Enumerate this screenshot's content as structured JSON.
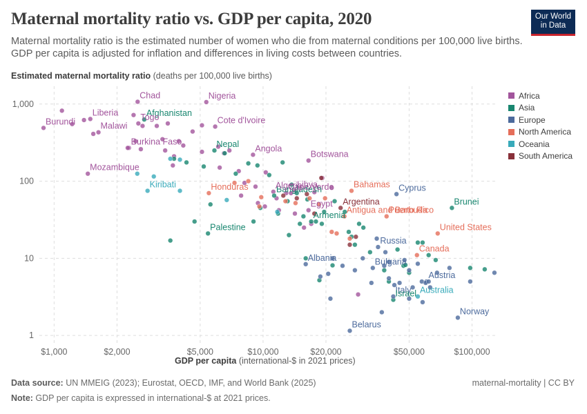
{
  "header": {
    "title": "Maternal mortality ratio vs. GDP per capita, 2020",
    "subtitle": "Maternal mortality ratio is the estimated number of women who die from maternal conditions per 100,000 live births. GDP per capita is adjusted for inflation and differences in living costs between countries.",
    "logo_line1": "Our World",
    "logo_line2": "in Data"
  },
  "axes": {
    "y_label_bold": "Estimated maternal mortality ratio",
    "y_label_rest": " (deaths per 100,000 live births)",
    "x_label_bold": "GDP per capita",
    "x_label_rest": " (international-$ in 2021 prices)"
  },
  "footer": {
    "source_label": "Data source:",
    "source_text": " UN MMEIG (2023); Eurostat, OECD, IMF, and World Bank (2025)",
    "note_label": "Note:",
    "note_text": " GDP per capita is expressed in international-$ at 2021 prices.",
    "credit": "maternal-mortality | CC BY"
  },
  "chart_data": {
    "type": "scatter",
    "x_scale": "log",
    "y_scale": "log",
    "xlim": [
      850,
      130000
    ],
    "ylim": [
      0.8,
      1700
    ],
    "x_ticks": [
      {
        "value": 1000,
        "label": "$1,000"
      },
      {
        "value": 2000,
        "label": "$2,000"
      },
      {
        "value": 5000,
        "label": "$5,000"
      },
      {
        "value": 10000,
        "label": "$10,000"
      },
      {
        "value": 20000,
        "label": "$20,000"
      },
      {
        "value": 50000,
        "label": "$50,000"
      },
      {
        "value": 100000,
        "label": "$100,000"
      }
    ],
    "y_ticks": [
      {
        "value": 1,
        "label": "1"
      },
      {
        "value": 10,
        "label": "10"
      },
      {
        "value": 100,
        "label": "100"
      },
      {
        "value": 1000,
        "label": "1,000"
      }
    ],
    "grid": true,
    "legend_position": "right",
    "series": [
      {
        "name": "Africa",
        "color": "#a2559c",
        "points": [
          [
            1090,
            820
          ],
          [
            2510,
            1070
          ],
          [
            5350,
            1060
          ],
          [
            1490,
            640
          ],
          [
            890,
            490
          ],
          [
            1630,
            430
          ],
          [
            2530,
            560
          ],
          [
            5900,
            510
          ],
          [
            3300,
            350
          ],
          [
            2280,
            270
          ],
          [
            8950,
            220
          ],
          [
            16500,
            185
          ],
          [
            1450,
            125
          ],
          [
            7650,
            135
          ],
          [
            14200,
            75
          ],
          [
            11200,
            73
          ],
          [
            12900,
            70
          ],
          [
            16500,
            42
          ],
          [
            17000,
            28
          ],
          [
            1220,
            550
          ],
          [
            1390,
            620
          ],
          [
            1540,
            410
          ],
          [
            2250,
            270
          ],
          [
            2400,
            720
          ],
          [
            2650,
            520
          ],
          [
            3100,
            520
          ],
          [
            3500,
            560
          ],
          [
            3950,
            330
          ],
          [
            4600,
            440
          ],
          [
            5100,
            530
          ],
          [
            6100,
            280
          ],
          [
            6500,
            230
          ],
          [
            3400,
            250
          ],
          [
            2600,
            260
          ],
          [
            6900,
            250
          ],
          [
            5100,
            240
          ],
          [
            6200,
            150
          ],
          [
            8150,
            95
          ],
          [
            9200,
            85
          ],
          [
            10300,
            130
          ],
          [
            11600,
            60
          ],
          [
            13600,
            70
          ],
          [
            17600,
            72
          ],
          [
            19200,
            110
          ],
          [
            21300,
            82
          ],
          [
            7850,
            65
          ],
          [
            9450,
            52
          ],
          [
            10200,
            47
          ],
          [
            11900,
            42
          ],
          [
            14200,
            38
          ],
          [
            15700,
            25
          ],
          [
            28500,
            3.4
          ],
          [
            2450,
            330
          ],
          [
            3750,
            210
          ],
          [
            3700,
            160
          ],
          [
            4150,
            290
          ]
        ]
      },
      {
        "name": "Asia",
        "color": "#18866f",
        "points": [
          [
            2700,
            630
          ],
          [
            5850,
            250
          ],
          [
            80100,
            45
          ],
          [
            17000,
            30
          ],
          [
            5450,
            21
          ],
          [
            11300,
            65
          ],
          [
            3750,
            195
          ],
          [
            4300,
            175
          ],
          [
            5200,
            155
          ],
          [
            6550,
            230
          ],
          [
            7400,
            125
          ],
          [
            8500,
            170
          ],
          [
            9400,
            160
          ],
          [
            10700,
            120
          ],
          [
            12400,
            175
          ],
          [
            13700,
            90
          ],
          [
            13100,
            55
          ],
          [
            14500,
            70
          ],
          [
            15600,
            35
          ],
          [
            16300,
            58
          ],
          [
            17900,
            30
          ],
          [
            19100,
            28
          ],
          [
            19600,
            40
          ],
          [
            22000,
            55
          ],
          [
            24600,
            40
          ],
          [
            25700,
            22
          ],
          [
            26500,
            19
          ],
          [
            27500,
            15
          ],
          [
            28800,
            28
          ],
          [
            30200,
            25
          ],
          [
            32500,
            12
          ],
          [
            38000,
            7
          ],
          [
            44000,
            13
          ],
          [
            47000,
            8
          ],
          [
            50000,
            6.5
          ],
          [
            55000,
            16
          ],
          [
            58000,
            16
          ],
          [
            62000,
            11
          ],
          [
            67000,
            9.5
          ],
          [
            98000,
            7.5
          ],
          [
            115000,
            7.2
          ],
          [
            40000,
            5
          ],
          [
            42000,
            2.9
          ],
          [
            48000,
            8.2
          ],
          [
            3600,
            17
          ],
          [
            4700,
            30
          ],
          [
            5600,
            50
          ],
          [
            9000,
            30
          ],
          [
            9700,
            45
          ],
          [
            11800,
            38
          ],
          [
            13300,
            20
          ],
          [
            15000,
            28
          ],
          [
            16000,
            10
          ],
          [
            18600,
            5.2
          ],
          [
            21500,
            8.1
          ]
        ]
      },
      {
        "name": "Europe",
        "color": "#4c6a9c",
        "points": [
          [
            43500,
            68
          ],
          [
            35500,
            14
          ],
          [
            16000,
            8.4
          ],
          [
            33500,
            7.5
          ],
          [
            60500,
            5
          ],
          [
            85500,
            1.7
          ],
          [
            26000,
            1.15
          ],
          [
            42000,
            3.2
          ],
          [
            35000,
            18
          ],
          [
            38000,
            8
          ],
          [
            40000,
            5.5
          ],
          [
            42500,
            4.5
          ],
          [
            45000,
            4.8
          ],
          [
            47500,
            9.5
          ],
          [
            50000,
            7
          ],
          [
            52000,
            4.2
          ],
          [
            55000,
            8.5
          ],
          [
            57500,
            5
          ],
          [
            60000,
            4.8
          ],
          [
            63000,
            4.2
          ],
          [
            68000,
            6.5
          ],
          [
            78000,
            7.5
          ],
          [
            98000,
            5
          ],
          [
            128000,
            6.5
          ],
          [
            21000,
            3
          ],
          [
            18800,
            5.8
          ],
          [
            20500,
            6.3
          ],
          [
            21500,
            10
          ],
          [
            24000,
            8
          ],
          [
            27500,
            7
          ],
          [
            30000,
            10
          ],
          [
            33000,
            4.8
          ],
          [
            37000,
            2
          ],
          [
            38500,
            12
          ],
          [
            40000,
            9
          ],
          [
            50000,
            3
          ],
          [
            58000,
            2.7
          ],
          [
            62000,
            5
          ]
        ]
      },
      {
        "name": "North America",
        "color": "#e56e5a",
        "points": [
          [
            26500,
            75
          ],
          [
            24500,
            35
          ],
          [
            39000,
            35
          ],
          [
            68500,
            21
          ],
          [
            54500,
            11
          ],
          [
            5500,
            70
          ],
          [
            9800,
            62
          ],
          [
            12800,
            55
          ],
          [
            14300,
            52
          ],
          [
            16700,
            60
          ],
          [
            18500,
            50
          ],
          [
            19800,
            60
          ],
          [
            21300,
            22
          ],
          [
            22500,
            21
          ],
          [
            26000,
            18
          ],
          [
            9600,
            47
          ],
          [
            7300,
            95
          ],
          [
            8500,
            100
          ]
        ]
      },
      {
        "name": "Oceania",
        "color": "#38aaba",
        "points": [
          [
            2800,
            75
          ],
          [
            2500,
            125
          ],
          [
            3000,
            115
          ],
          [
            4000,
            75
          ],
          [
            6700,
            57
          ],
          [
            11700,
            40
          ],
          [
            55000,
            3.2
          ],
          [
            3600,
            195
          ],
          [
            4000,
            190
          ]
        ]
      },
      {
        "name": "South America",
        "color": "#883039",
        "points": [
          [
            23500,
            45
          ],
          [
            26000,
            15
          ],
          [
            19000,
            110
          ],
          [
            12500,
            65
          ],
          [
            14500,
            60
          ],
          [
            17600,
            38
          ],
          [
            27800,
            19
          ],
          [
            16200,
            68
          ]
        ]
      }
    ],
    "annotations": [
      {
        "text": "Chad",
        "series": "Africa",
        "x": 2510,
        "y": 1070
      },
      {
        "text": "Nigeria",
        "series": "Africa",
        "x": 5350,
        "y": 1060
      },
      {
        "text": "Liberia",
        "series": "Africa",
        "x": 1490,
        "y": 640
      },
      {
        "text": "Afghanistan",
        "series": "Asia",
        "x": 2700,
        "y": 630
      },
      {
        "text": "Burundi",
        "series": "Africa",
        "x": 890,
        "y": 490
      },
      {
        "text": "Cote d'Ivoire",
        "series": "Africa",
        "x": 5900,
        "y": 510
      },
      {
        "text": "Malawi",
        "series": "Africa",
        "x": 1630,
        "y": 430
      },
      {
        "text": "Togo",
        "series": "Africa",
        "x": 2530,
        "y": 560
      },
      {
        "text": "Burkina Faso",
        "series": "Africa",
        "x": 2280,
        "y": 270
      },
      {
        "text": "Angola",
        "series": "Africa",
        "x": 8950,
        "y": 220
      },
      {
        "text": "Botswana",
        "series": "Africa",
        "x": 16500,
        "y": 185
      },
      {
        "text": "Nepal",
        "series": "Asia",
        "x": 5850,
        "y": 250
      },
      {
        "text": "Bangladesh",
        "series": "Asia",
        "x": 11300,
        "y": 65
      },
      {
        "text": "Mozambique",
        "series": "Africa",
        "x": 1450,
        "y": 125
      },
      {
        "text": "Kiribati",
        "series": "Oceania",
        "x": 2800,
        "y": 75
      },
      {
        "text": "Honduras",
        "series": "North America",
        "x": 5500,
        "y": 70
      },
      {
        "text": "Libya",
        "series": "Africa",
        "x": 14200,
        "y": 75
      },
      {
        "text": "Algeria",
        "series": "Africa",
        "x": 11200,
        "y": 73
      },
      {
        "text": "Bahamas",
        "series": "North America",
        "x": 26500,
        "y": 75
      },
      {
        "text": "Cyprus",
        "series": "Europe",
        "x": 43500,
        "y": 68
      },
      {
        "text": "Cape Verde",
        "series": "Africa",
        "x": 12900,
        "y": 70
      },
      {
        "text": "Argentina",
        "series": "South America",
        "x": 23500,
        "y": 45
      },
      {
        "text": "Brunei",
        "series": "Asia",
        "x": 80100,
        "y": 45
      },
      {
        "text": "Puerto Rico",
        "series": "North America",
        "x": 39000,
        "y": 35
      },
      {
        "text": "Armenia",
        "series": "Asia",
        "x": 17000,
        "y": 30
      },
      {
        "text": "Palestine",
        "series": "Asia",
        "x": 5450,
        "y": 21
      },
      {
        "text": "Antigua and Barbuda",
        "series": "North America",
        "x": 24500,
        "y": 35
      },
      {
        "text": "United States",
        "series": "North America",
        "x": 68500,
        "y": 21
      },
      {
        "text": "Egypt",
        "series": "Africa",
        "x": 16500,
        "y": 42
      },
      {
        "text": "Russia",
        "series": "Europe",
        "x": 35500,
        "y": 14
      },
      {
        "text": "Canada",
        "series": "North America",
        "x": 54500,
        "y": 11
      },
      {
        "text": "Albania",
        "series": "Europe",
        "x": 16000,
        "y": 8.4
      },
      {
        "text": "Bulgaria",
        "series": "Europe",
        "x": 33500,
        "y": 7.5
      },
      {
        "text": "Austria",
        "series": "Europe",
        "x": 60500,
        "y": 5
      },
      {
        "text": "Italy",
        "series": "Europe",
        "x": 42000,
        "y": 3.2
      },
      {
        "text": "Israel",
        "series": "Asia",
        "x": 42000,
        "y": 2.9
      },
      {
        "text": "Australia",
        "series": "Oceania",
        "x": 55000,
        "y": 3.2
      },
      {
        "text": "Norway",
        "series": "Europe",
        "x": 85500,
        "y": 1.7
      },
      {
        "text": "Belarus",
        "series": "Europe",
        "x": 26000,
        "y": 1.15
      }
    ]
  }
}
